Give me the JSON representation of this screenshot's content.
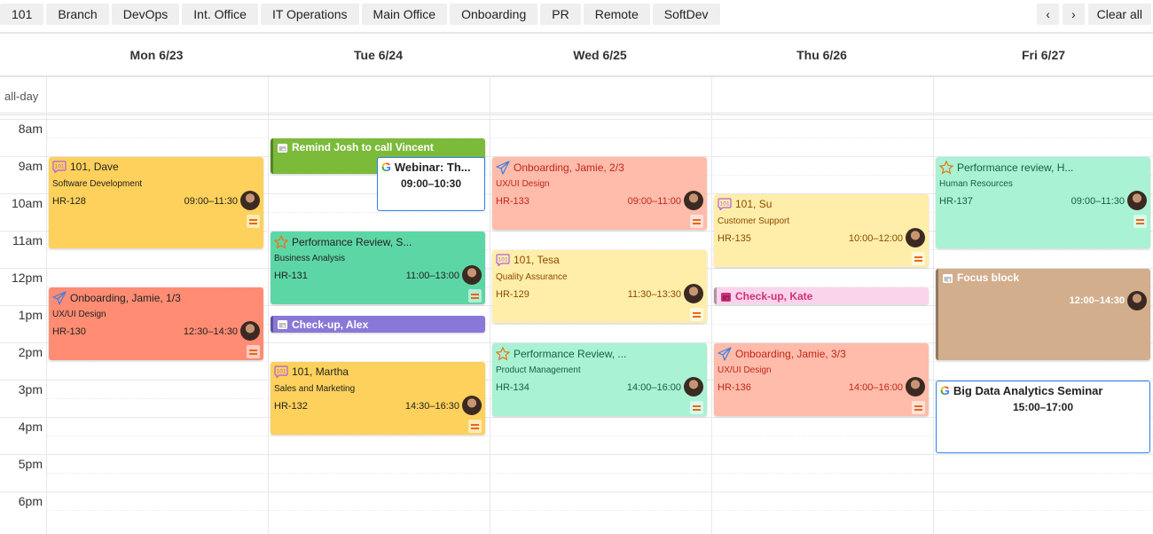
{
  "filters": [
    "101",
    "Branch",
    "DevOps",
    "Int. Office",
    "IT Operations",
    "Main Office",
    "Onboarding",
    "PR",
    "Remote",
    "SoftDev"
  ],
  "nav": {
    "prev": "‹",
    "next": "›",
    "clear": "Clear all"
  },
  "days": [
    "Mon 6/23",
    "Tue 6/24",
    "Wed 6/25",
    "Thu 6/26",
    "Fri 6/27"
  ],
  "allday_label": "all-day",
  "hours": [
    "8am",
    "9am",
    "10am",
    "11am",
    "12pm",
    "1pm",
    "2pm",
    "3pm",
    "4pm",
    "5pm",
    "6pm"
  ],
  "events": [
    {
      "day": 0,
      "start": "09:00",
      "end": "11:30",
      "kind": "task",
      "icon": "101-chat-icon",
      "title": "101, Dave",
      "dept": "Software Development",
      "id": "HR-128",
      "time": "09:00–11:30",
      "bg": "#fdd15b",
      "fg": "#222"
    },
    {
      "day": 0,
      "start": "12:30",
      "end": "14:30",
      "kind": "task",
      "icon": "paper-plane-icon",
      "title": "Onboarding, Jamie, 1/3",
      "dept": "UX/UI Design",
      "id": "HR-130",
      "time": "12:30–14:30",
      "bg": "#ff8c73",
      "fg": "#222"
    },
    {
      "day": 1,
      "start": "08:30",
      "end": "09:30",
      "kind": "calendar",
      "icon": "calendar-icon",
      "title": "Remind Josh to call Vincent",
      "bg": "#7cba3a",
      "fg": "#fff"
    },
    {
      "day": 1,
      "start": "09:00",
      "end": "10:30",
      "kind": "google",
      "icon": "google-icon",
      "title": "Webinar: Th...",
      "time": "09:00–10:30",
      "bg": "#ffffff",
      "fg": "#222"
    },
    {
      "day": 1,
      "start": "11:00",
      "end": "13:00",
      "kind": "task",
      "icon": "star-icon",
      "title": "Performance Review, S...",
      "dept": "Business Analysis",
      "id": "HR-131",
      "time": "11:00–13:00",
      "bg": "#5dd6a6",
      "fg": "#222"
    },
    {
      "day": 1,
      "start": "13:15",
      "end": "13:45",
      "kind": "calendar",
      "icon": "calendar-icon",
      "title": "Check-up, Alex",
      "bg": "#8a78d8",
      "fg": "#fff"
    },
    {
      "day": 1,
      "start": "14:30",
      "end": "16:30",
      "kind": "task",
      "icon": "101-chat-icon",
      "title": "101, Martha",
      "dept": "Sales and Marketing",
      "id": "HR-132",
      "time": "14:30–16:30",
      "bg": "#fdd15b",
      "fg": "#222"
    },
    {
      "day": 2,
      "start": "09:00",
      "end": "11:00",
      "kind": "task",
      "icon": "paper-plane-icon",
      "title": "Onboarding, Jamie, 2/3",
      "dept": "UX/UI Design",
      "id": "HR-133",
      "time": "09:00–11:00",
      "bg": "#ffbcaa",
      "fg": "#c0261b"
    },
    {
      "day": 2,
      "start": "11:30",
      "end": "13:30",
      "kind": "task",
      "icon": "101-chat-icon",
      "title": "101, Tesa",
      "dept": "Quality Assurance",
      "id": "HR-129",
      "time": "11:30–13:30",
      "bg": "#ffeeaa",
      "fg": "#8a4a00"
    },
    {
      "day": 2,
      "start": "14:00",
      "end": "16:00",
      "kind": "task",
      "icon": "star-icon",
      "title": "Performance Review, ...",
      "dept": "Product Management",
      "id": "HR-134",
      "time": "14:00–16:00",
      "bg": "#a9f2d3",
      "fg": "#1d5e42"
    },
    {
      "day": 3,
      "start": "10:00",
      "end": "12:00",
      "kind": "task",
      "icon": "101-chat-icon",
      "title": "101, Su",
      "dept": "Customer Support",
      "id": "HR-135",
      "time": "10:00–12:00",
      "bg": "#ffeeaa",
      "fg": "#8a4a00"
    },
    {
      "day": 3,
      "start": "12:30",
      "end": "13:00",
      "kind": "calendar",
      "icon": "calendar-icon",
      "title": "Check-up, Kate",
      "bg": "#fad4ea",
      "fg": "#d0307a"
    },
    {
      "day": 3,
      "start": "14:00",
      "end": "16:00",
      "kind": "task",
      "icon": "paper-plane-icon",
      "title": "Onboarding, Jamie, 3/3",
      "dept": "UX/UI Design",
      "id": "HR-136",
      "time": "14:00–16:00",
      "bg": "#ffbcaa",
      "fg": "#c0261b"
    },
    {
      "day": 4,
      "start": "09:00",
      "end": "11:30",
      "kind": "task",
      "icon": "star-icon",
      "title": "Performance review, H...",
      "dept": "Human Resources",
      "id": "HR-137",
      "time": "09:00–11:30",
      "bg": "#a9f2d3",
      "fg": "#1d5e42"
    },
    {
      "day": 4,
      "start": "12:00",
      "end": "14:30",
      "kind": "calendar",
      "icon": "calendar-icon",
      "title": "Focus block",
      "time": "12:00–14:30",
      "bg": "#d2ae8c",
      "fg": "#fff"
    },
    {
      "day": 4,
      "start": "15:00",
      "end": "17:00",
      "kind": "google",
      "icon": "google-icon",
      "title": "Big Data Analytics Seminar",
      "time": "15:00–17:00",
      "bg": "#ffffff",
      "fg": "#222"
    }
  ]
}
